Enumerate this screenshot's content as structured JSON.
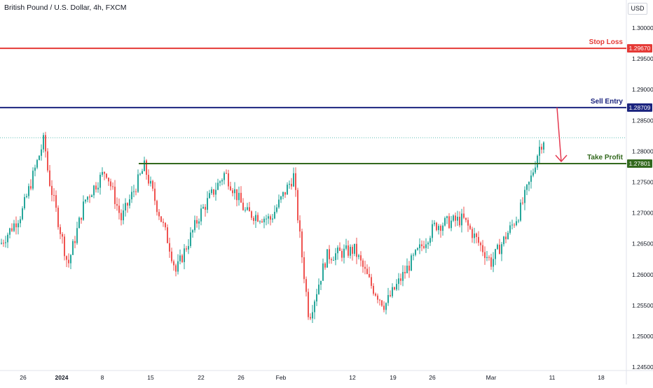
{
  "header": {
    "title": "British Pound / U.S. Dollar, 4h, FXCM",
    "currency": "USD"
  },
  "colors": {
    "up": "#26a69a",
    "down": "#ef5350",
    "stop": "#e53935",
    "entry": "#1a237e",
    "tp": "#33691e",
    "arrow": "#e53950"
  },
  "chart_data": {
    "type": "candlestick",
    "title": "British Pound / U.S. Dollar, 4h, FXCM",
    "y_axis": {
      "min": 1.243,
      "max": 1.305,
      "ticks": [
        "1.30000",
        "1.29500",
        "1.29000",
        "1.28500",
        "1.28000",
        "1.27500",
        "1.27000",
        "1.26500",
        "1.26000",
        "1.25500",
        "1.25000",
        "1.24500"
      ]
    },
    "x_axis": {
      "ticks": [
        "26",
        "2024",
        "8",
        "15",
        "22",
        "26",
        "Feb",
        "12",
        "19",
        "26",
        "Mar",
        "11",
        "18"
      ]
    },
    "levels": [
      {
        "name": "Stop Loss",
        "value": 1.2967,
        "label": "1.29670"
      },
      {
        "name": "Sell Entry",
        "value": 1.28709,
        "label": "1.28709"
      },
      {
        "name": "Take Profit",
        "value": 1.27801,
        "label": "1.27801"
      }
    ],
    "last_price": 1.2822,
    "series_summary": [
      {
        "x": 0,
        "close": 1.265
      },
      {
        "x": 30,
        "close": 1.27
      },
      {
        "x": 62,
        "close": 1.282
      },
      {
        "x": 68,
        "close": 1.276
      },
      {
        "x": 96,
        "close": 1.2615
      },
      {
        "x": 120,
        "close": 1.272
      },
      {
        "x": 150,
        "close": 1.277
      },
      {
        "x": 172,
        "close": 1.269
      },
      {
        "x": 205,
        "close": 1.2775
      },
      {
        "x": 240,
        "close": 1.265
      },
      {
        "x": 250,
        "close": 1.2605
      },
      {
        "x": 285,
        "close": 1.27
      },
      {
        "x": 320,
        "close": 1.2765
      },
      {
        "x": 350,
        "close": 1.27
      },
      {
        "x": 385,
        "close": 1.269
      },
      {
        "x": 418,
        "close": 1.276
      },
      {
        "x": 428,
        "close": 1.265
      },
      {
        "x": 440,
        "close": 1.253
      },
      {
        "x": 465,
        "close": 1.263
      },
      {
        "x": 505,
        "close": 1.264
      },
      {
        "x": 530,
        "close": 1.258
      },
      {
        "x": 548,
        "close": 1.255
      },
      {
        "x": 580,
        "close": 1.261
      },
      {
        "x": 620,
        "close": 1.268
      },
      {
        "x": 660,
        "close": 1.269
      },
      {
        "x": 700,
        "close": 1.262
      },
      {
        "x": 740,
        "close": 1.27
      },
      {
        "x": 758,
        "close": 1.276
      },
      {
        "x": 768,
        "close": 1.2805
      },
      {
        "x": 776,
        "close": 1.2822
      }
    ]
  }
}
